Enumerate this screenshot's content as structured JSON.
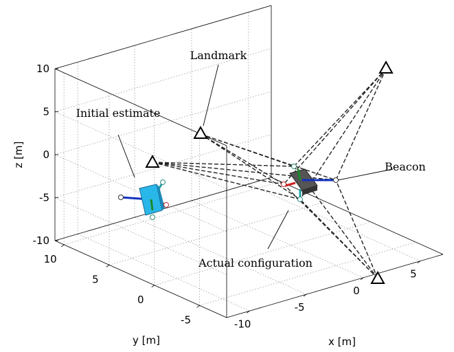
{
  "chart_data": {
    "type": "scene3d",
    "xlabel": "x [m]",
    "ylabel": "y [m]",
    "zlabel": "z [m]",
    "xlim": [
      -12,
      7
    ],
    "ylim": [
      -8,
      11
    ],
    "zlim": [
      -10,
      10
    ],
    "xticks": [
      -10,
      -5,
      0,
      5
    ],
    "yticks": [
      -5,
      0,
      5,
      10
    ],
    "zticks": [
      -10,
      -5,
      0,
      5,
      10
    ],
    "grid": true,
    "annotations": [
      "Landmark",
      "Initial estimate",
      "Beacon",
      "Actual configuration"
    ]
  }
}
